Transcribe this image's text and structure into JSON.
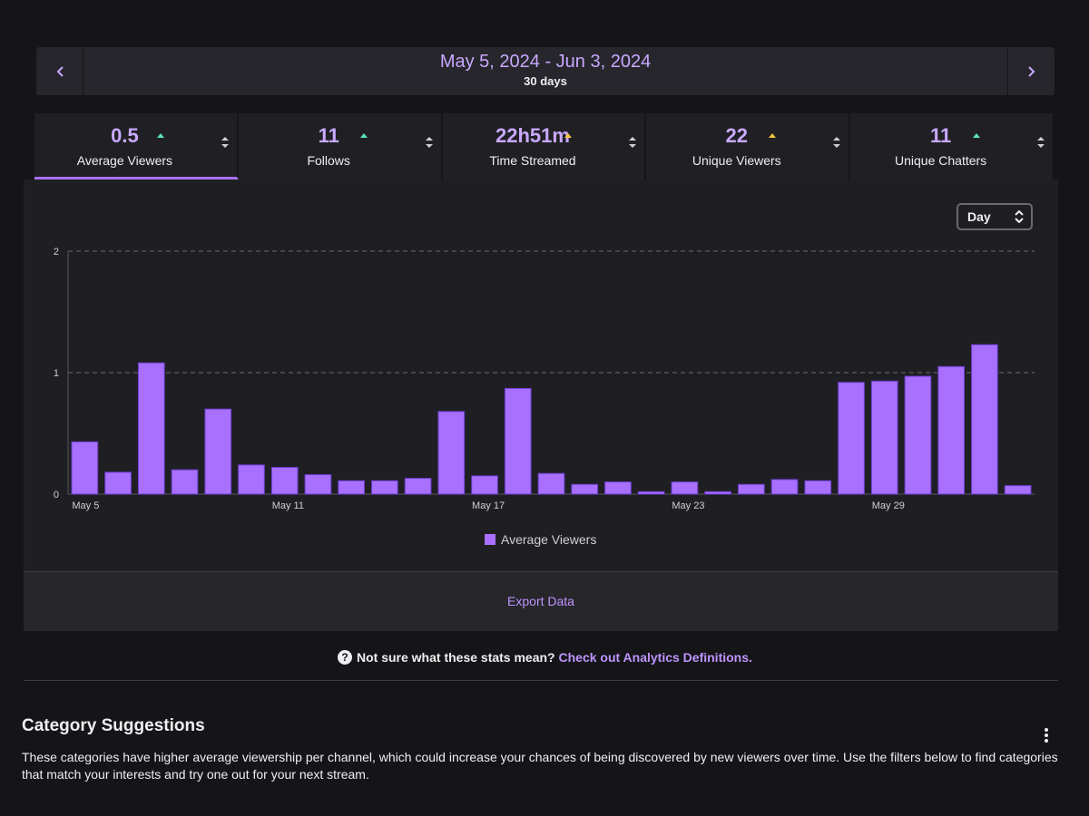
{
  "header": {
    "date_range": "May 5, 2024 - Jun 3, 2024",
    "duration": "30 days"
  },
  "stats": [
    {
      "value": "0.5",
      "label": "Average Viewers"
    },
    {
      "value": "11",
      "label": "Follows"
    },
    {
      "value": "22h51m",
      "label": "Time Streamed"
    },
    {
      "value": "22",
      "label": "Unique Viewers"
    },
    {
      "value": "11",
      "label": "Unique Chatters"
    }
  ],
  "interval": "Day",
  "chart_data": {
    "type": "bar",
    "categories": [
      "May 5",
      null,
      null,
      null,
      null,
      null,
      "May 11",
      null,
      null,
      null,
      null,
      null,
      "May 17",
      null,
      null,
      null,
      null,
      null,
      "May 23",
      null,
      null,
      null,
      null,
      null,
      "May 29",
      null,
      null,
      null,
      null
    ],
    "series": [
      {
        "name": "Average Viewers",
        "color": "#a970ff",
        "values": [
          0.43,
          0.18,
          1.08,
          0.2,
          0.7,
          0.24,
          0.22,
          0.16,
          0.11,
          0.11,
          0.13,
          0.68,
          0.15,
          0.87,
          0.17,
          0.08,
          0.1,
          0.02,
          0.1,
          0.02,
          0.08,
          0.12,
          0.11,
          0.92,
          0.93,
          0.97,
          1.05,
          1.23,
          0.07
        ]
      }
    ],
    "ylim": [
      0,
      2
    ],
    "yticks": [
      0,
      1,
      2
    ],
    "grid": true,
    "legend": "bottom"
  },
  "export": "Export Data",
  "help": {
    "question": "Not sure what these stats mean?",
    "link": "Check out Analytics Definitions."
  },
  "section": {
    "title": "Category Suggestions",
    "description": "These categories have higher average viewership per channel, which could increase your chances of being discovered by new viewers over time. Use the filters below to find categories that match your interests and try one out for your next stream."
  }
}
